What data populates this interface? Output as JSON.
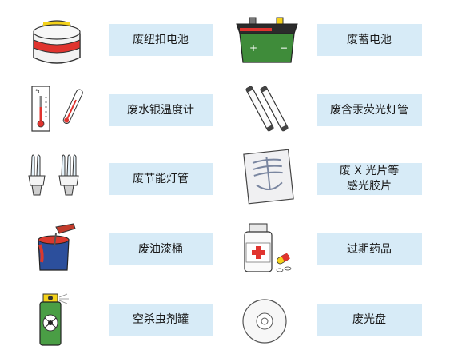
{
  "items": [
    {
      "label": "废纽扣电池",
      "icon": "button-cell-battery-icon"
    },
    {
      "label": "废蓄电池",
      "icon": "car-battery-icon"
    },
    {
      "label": "废水银温度计",
      "icon": "mercury-thermometer-icon"
    },
    {
      "label": "废含汞荧光灯管",
      "icon": "fluorescent-tube-icon"
    },
    {
      "label": "废节能灯管",
      "icon": "energy-saving-bulb-icon"
    },
    {
      "label": "废 X 光片等\n感光胶片",
      "icon": "xray-film-icon"
    },
    {
      "label": "废油漆桶",
      "icon": "paint-bucket-icon"
    },
    {
      "label": "过期药品",
      "icon": "medicine-bottle-icon"
    },
    {
      "label": "空杀虫剂罐",
      "icon": "insecticide-can-icon"
    },
    {
      "label": "废光盘",
      "icon": "compact-disc-icon"
    }
  ],
  "colors": {
    "label_background": "#d7ebf7"
  }
}
